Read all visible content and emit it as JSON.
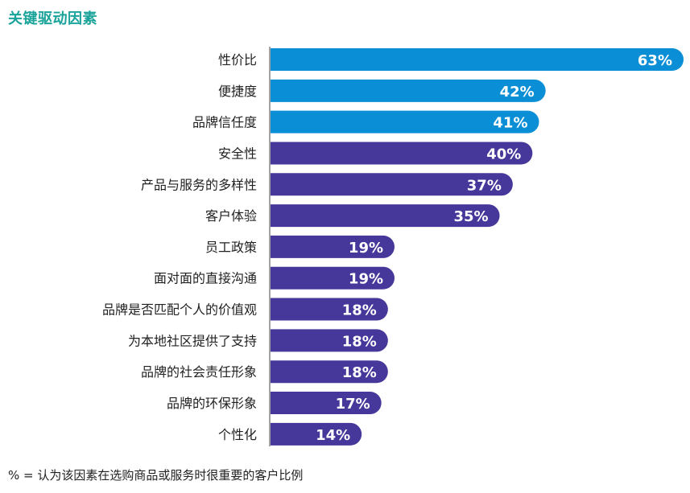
{
  "chart_data": {
    "type": "bar",
    "orientation": "horizontal",
    "title": "关键驱动因素",
    "categories": [
      "性价比",
      "便捷度",
      "品牌信任度",
      "安全性",
      "产品与服务的多样性",
      "客户体验",
      "员工政策",
      "面对面的直接沟通",
      "品牌是否匹配个人的价值观",
      "为本地社区提供了支持",
      "品牌的社会责任形象",
      "品牌的环保形象",
      "个性化"
    ],
    "values": [
      63,
      42,
      41,
      40,
      37,
      35,
      19,
      19,
      18,
      18,
      18,
      17,
      14
    ],
    "value_labels": [
      "63%",
      "42%",
      "41%",
      "40%",
      "37%",
      "35%",
      "19%",
      "19%",
      "18%",
      "18%",
      "18%",
      "17%",
      "14%"
    ],
    "bar_colors": [
      "#0a8fd6",
      "#0a8fd6",
      "#0a8fd6",
      "#46379a",
      "#46379a",
      "#46379a",
      "#46379a",
      "#46379a",
      "#46379a",
      "#46379a",
      "#46379a",
      "#46379a",
      "#46379a"
    ],
    "xlim": [
      0,
      63
    ],
    "footnote": "% = 认为该因素在选购商品或服务时很重要的客户比例"
  }
}
